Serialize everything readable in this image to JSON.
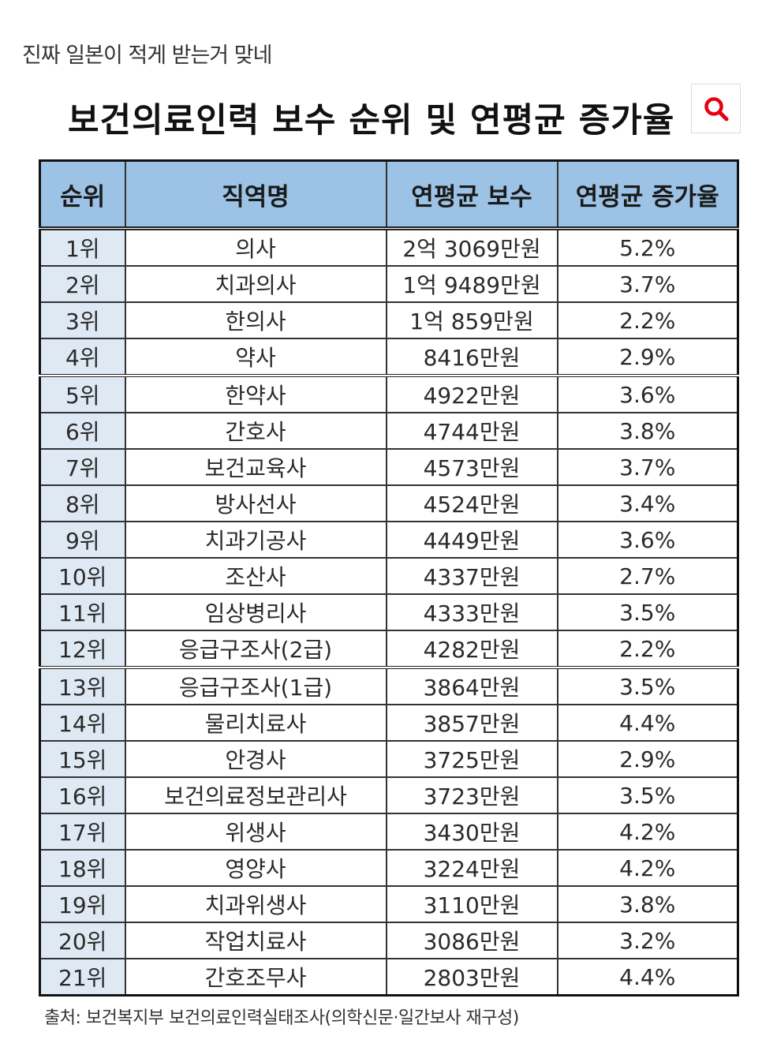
{
  "post": {
    "title": "진짜 일본이 적게 받는거 맞네"
  },
  "table_title": "보건의료인력 보수 순위 및 연평균 증가율",
  "search": {
    "icon": "search-icon",
    "color": "#e60012"
  },
  "columns": [
    "순위",
    "직역명",
    "연평균 보수",
    "연평균 증가율"
  ],
  "rows": [
    {
      "rank": "1위",
      "job": "의사",
      "pay": "2억 3069만원",
      "growth": "5.2%"
    },
    {
      "rank": "2위",
      "job": "치과의사",
      "pay": "1억 9489만원",
      "growth": "3.7%"
    },
    {
      "rank": "3위",
      "job": "한의사",
      "pay": "1억 859만원",
      "growth": "2.2%"
    },
    {
      "rank": "4위",
      "job": "약사",
      "pay": "8416만원",
      "growth": "2.9%"
    },
    {
      "rank": "5위",
      "job": "한약사",
      "pay": "4922만원",
      "growth": "3.6%"
    },
    {
      "rank": "6위",
      "job": "간호사",
      "pay": "4744만원",
      "growth": "3.8%"
    },
    {
      "rank": "7위",
      "job": "보건교육사",
      "pay": "4573만원",
      "growth": "3.7%"
    },
    {
      "rank": "8위",
      "job": "방사선사",
      "pay": "4524만원",
      "growth": "3.4%"
    },
    {
      "rank": "9위",
      "job": "치과기공사",
      "pay": "4449만원",
      "growth": "3.6%"
    },
    {
      "rank": "10위",
      "job": "조산사",
      "pay": "4337만원",
      "growth": "2.7%"
    },
    {
      "rank": "11위",
      "job": "임상병리사",
      "pay": "4333만원",
      "growth": "3.5%"
    },
    {
      "rank": "12위",
      "job": "응급구조사(2급)",
      "pay": "4282만원",
      "growth": "2.2%"
    },
    {
      "rank": "13위",
      "job": "응급구조사(1급)",
      "pay": "3864만원",
      "growth": "3.5%"
    },
    {
      "rank": "14위",
      "job": "물리치료사",
      "pay": "3857만원",
      "growth": "4.4%"
    },
    {
      "rank": "15위",
      "job": "안경사",
      "pay": "3725만원",
      "growth": "2.9%"
    },
    {
      "rank": "16위",
      "job": "보건의료정보관리사",
      "pay": "3723만원",
      "growth": "3.5%"
    },
    {
      "rank": "17위",
      "job": "위생사",
      "pay": "3430만원",
      "growth": "4.2%"
    },
    {
      "rank": "18위",
      "job": "영양사",
      "pay": "3224만원",
      "growth": "4.2%"
    },
    {
      "rank": "19위",
      "job": "치과위생사",
      "pay": "3110만원",
      "growth": "3.8%"
    },
    {
      "rank": "20위",
      "job": "작업치료사",
      "pay": "3086만원",
      "growth": "3.2%"
    },
    {
      "rank": "21위",
      "job": "간호조무사",
      "pay": "2803만원",
      "growth": "4.4%"
    }
  ],
  "group_breaks": [
    4,
    12
  ],
  "source": "출처: 보건복지부 보건의료인력실태조사(의학신문·일간보사 재구성)",
  "colors": {
    "header_bg": "#9cc3e5",
    "rank_bg": "#dfe9f4"
  }
}
